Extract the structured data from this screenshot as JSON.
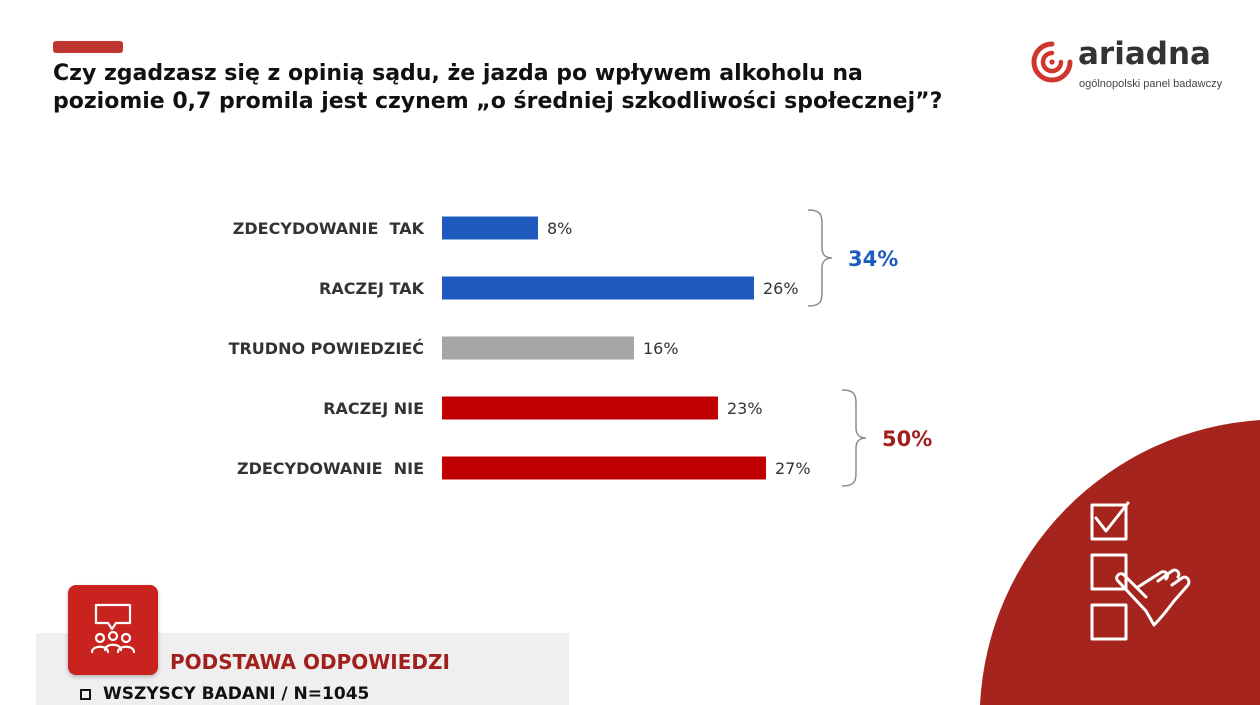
{
  "title": {
    "line1": "Czy zgadzasz się z opinią sądu, że jazda po wpływem alkoholu na",
    "line2": "poziomie 0,7 promila jest czynem „o średniej szkodliwości społecznej”?"
  },
  "logo": {
    "word": "ariadna",
    "subtitle": "ogólnopolski panel badawczy"
  },
  "chart_data": {
    "type": "bar",
    "orientation": "horizontal",
    "categories": [
      "ZDECYDOWANIE  TAK",
      "RACZEJ TAK",
      "TRUDNO POWIEDZIEĆ",
      "RACZEJ NIE",
      "ZDECYDOWANIE  NIE"
    ],
    "values": [
      8,
      26,
      16,
      23,
      27
    ],
    "value_labels": [
      "8%",
      "26%",
      "16%",
      "23%",
      "27%"
    ],
    "colors": [
      "#1f5bbf",
      "#1f5bbf",
      "#a6a6a6",
      "#c00000",
      "#c00000"
    ],
    "groups": [
      {
        "label": "34%",
        "from": 0,
        "to": 1,
        "color": "#1f5bbf"
      },
      {
        "label": "50%",
        "from": 3,
        "to": 4,
        "color": "#a11f1c"
      }
    ],
    "xlim": [
      0,
      30
    ],
    "grid": false,
    "legend": "none"
  },
  "base": {
    "title": "PODSTAWA ODPOWIEDZI",
    "line": "WSZYSCY BADANI / N=1045"
  },
  "colors": {
    "accent": "#c0342e",
    "corner": "#a6241e",
    "base_icon": "#c8231f"
  },
  "icons": [
    "ariadna-logo-icon",
    "respondents-icon",
    "checklist-hand-icon",
    "checkbox-icon"
  ]
}
